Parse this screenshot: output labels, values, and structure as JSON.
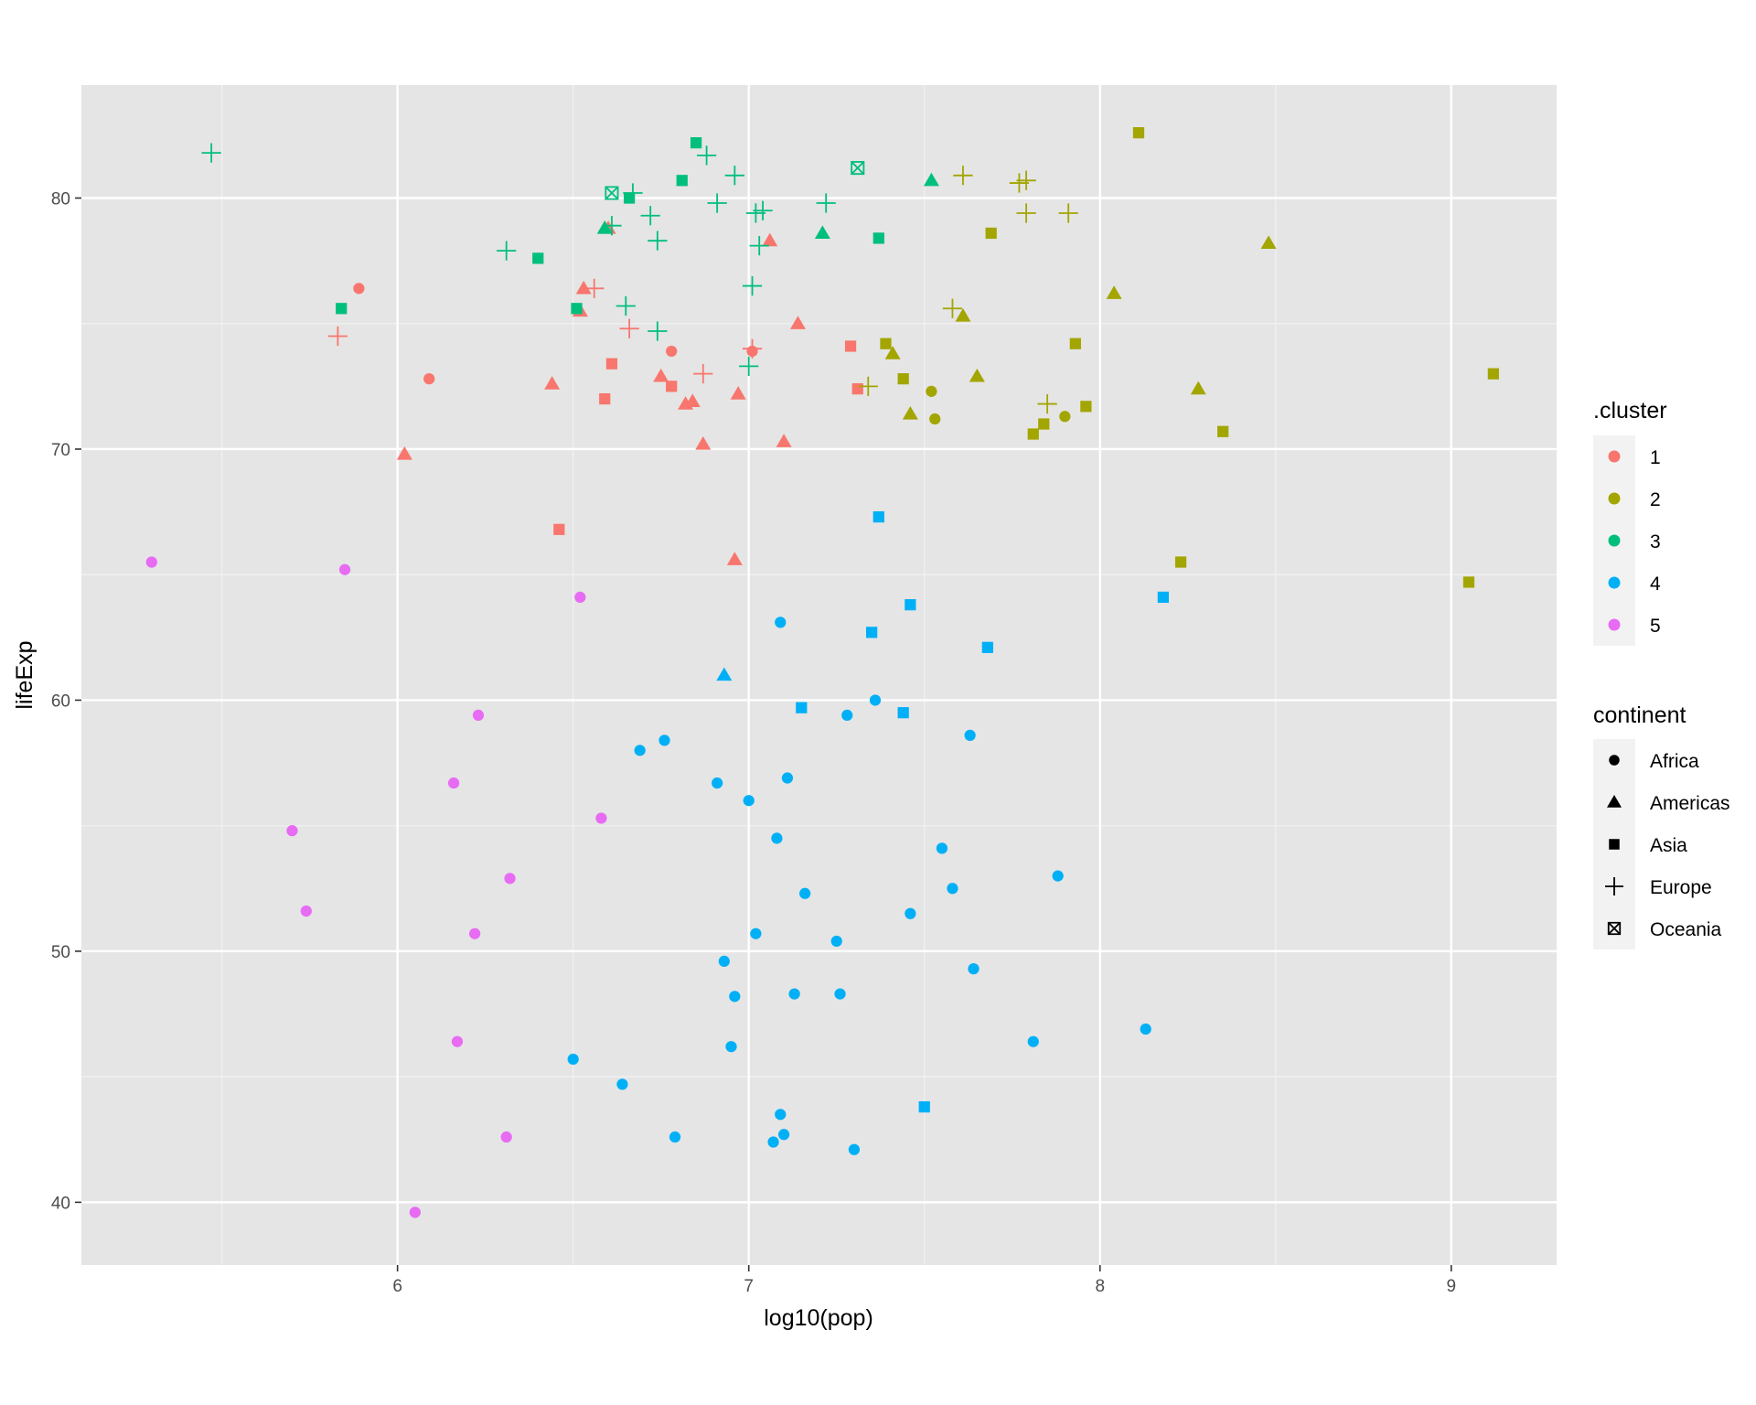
{
  "chart_data": {
    "type": "scatter",
    "xlabel": "log10(pop)",
    "ylabel": "lifeExp",
    "xlim": [
      5.1,
      9.3
    ],
    "ylim": [
      37.5,
      84.5
    ],
    "x_ticks": [
      6,
      7,
      8,
      9
    ],
    "x_minor": [
      5.5,
      6.5,
      7.5,
      8.5
    ],
    "y_ticks": [
      40,
      50,
      60,
      70,
      80
    ],
    "y_minor": [
      45,
      55,
      65,
      75
    ],
    "grid": true,
    "panel_background": "#e5e5e5",
    "legend_placement": "right",
    "legends": [
      {
        "title": ".cluster",
        "type": "color",
        "entries": [
          {
            "label": "1",
            "color": "#F8766D"
          },
          {
            "label": "2",
            "color": "#A3A500"
          },
          {
            "label": "3",
            "color": "#00BF7D"
          },
          {
            "label": "4",
            "color": "#00B0F6"
          },
          {
            "label": "5",
            "color": "#E76BF3"
          }
        ]
      },
      {
        "title": "continent",
        "type": "shape",
        "entries": [
          {
            "label": "Africa",
            "shape": "circle"
          },
          {
            "label": "Americas",
            "shape": "triangle"
          },
          {
            "label": "Asia",
            "shape": "square"
          },
          {
            "label": "Europe",
            "shape": "plus"
          },
          {
            "label": "Oceania",
            "shape": "boxcross"
          }
        ]
      }
    ],
    "points": [
      {
        "x": 5.89,
        "y": 76.4,
        "cluster": 1,
        "continent": "Africa"
      },
      {
        "x": 6.09,
        "y": 72.8,
        "cluster": 1,
        "continent": "Africa"
      },
      {
        "x": 6.78,
        "y": 73.9,
        "cluster": 1,
        "continent": "Africa"
      },
      {
        "x": 7.01,
        "y": 73.9,
        "cluster": 1,
        "continent": "Africa"
      },
      {
        "x": 6.02,
        "y": 69.8,
        "cluster": 1,
        "continent": "Americas"
      },
      {
        "x": 6.44,
        "y": 72.6,
        "cluster": 1,
        "continent": "Americas"
      },
      {
        "x": 6.52,
        "y": 75.5,
        "cluster": 1,
        "continent": "Americas"
      },
      {
        "x": 6.53,
        "y": 76.4,
        "cluster": 1,
        "continent": "Americas"
      },
      {
        "x": 6.6,
        "y": 78.8,
        "cluster": 1,
        "continent": "Americas"
      },
      {
        "x": 6.75,
        "y": 72.9,
        "cluster": 1,
        "continent": "Americas"
      },
      {
        "x": 6.82,
        "y": 71.8,
        "cluster": 1,
        "continent": "Americas"
      },
      {
        "x": 6.84,
        "y": 71.9,
        "cluster": 1,
        "continent": "Americas"
      },
      {
        "x": 6.87,
        "y": 70.2,
        "cluster": 1,
        "continent": "Americas"
      },
      {
        "x": 6.96,
        "y": 65.6,
        "cluster": 1,
        "continent": "Americas"
      },
      {
        "x": 6.97,
        "y": 72.2,
        "cluster": 1,
        "continent": "Americas"
      },
      {
        "x": 7.06,
        "y": 78.3,
        "cluster": 1,
        "continent": "Americas"
      },
      {
        "x": 7.1,
        "y": 70.3,
        "cluster": 1,
        "continent": "Americas"
      },
      {
        "x": 7.14,
        "y": 75.0,
        "cluster": 1,
        "continent": "Americas"
      },
      {
        "x": 6.46,
        "y": 66.8,
        "cluster": 1,
        "continent": "Asia"
      },
      {
        "x": 6.59,
        "y": 72.0,
        "cluster": 1,
        "continent": "Asia"
      },
      {
        "x": 6.61,
        "y": 73.4,
        "cluster": 1,
        "continent": "Asia"
      },
      {
        "x": 6.78,
        "y": 72.5,
        "cluster": 1,
        "continent": "Asia"
      },
      {
        "x": 7.29,
        "y": 74.1,
        "cluster": 1,
        "continent": "Asia"
      },
      {
        "x": 7.31,
        "y": 72.4,
        "cluster": 1,
        "continent": "Asia"
      },
      {
        "x": 5.83,
        "y": 74.5,
        "cluster": 1,
        "continent": "Europe"
      },
      {
        "x": 6.56,
        "y": 76.4,
        "cluster": 1,
        "continent": "Europe"
      },
      {
        "x": 6.66,
        "y": 74.8,
        "cluster": 1,
        "continent": "Europe"
      },
      {
        "x": 6.87,
        "y": 73.0,
        "cluster": 1,
        "continent": "Europe"
      },
      {
        "x": 7.01,
        "y": 74.0,
        "cluster": 1,
        "continent": "Europe"
      },
      {
        "x": 7.52,
        "y": 72.3,
        "cluster": 2,
        "continent": "Africa"
      },
      {
        "x": 7.53,
        "y": 71.2,
        "cluster": 2,
        "continent": "Africa"
      },
      {
        "x": 7.9,
        "y": 71.3,
        "cluster": 2,
        "continent": "Africa"
      },
      {
        "x": 7.41,
        "y": 73.8,
        "cluster": 2,
        "continent": "Americas"
      },
      {
        "x": 7.46,
        "y": 71.4,
        "cluster": 2,
        "continent": "Americas"
      },
      {
        "x": 7.61,
        "y": 75.3,
        "cluster": 2,
        "continent": "Americas"
      },
      {
        "x": 7.65,
        "y": 72.9,
        "cluster": 2,
        "continent": "Americas"
      },
      {
        "x": 8.04,
        "y": 76.2,
        "cluster": 2,
        "continent": "Americas"
      },
      {
        "x": 8.28,
        "y": 72.4,
        "cluster": 2,
        "continent": "Americas"
      },
      {
        "x": 8.48,
        "y": 78.2,
        "cluster": 2,
        "continent": "Americas"
      },
      {
        "x": 7.39,
        "y": 74.2,
        "cluster": 2,
        "continent": "Asia"
      },
      {
        "x": 7.44,
        "y": 72.8,
        "cluster": 2,
        "continent": "Asia"
      },
      {
        "x": 7.69,
        "y": 78.6,
        "cluster": 2,
        "continent": "Asia"
      },
      {
        "x": 7.81,
        "y": 70.6,
        "cluster": 2,
        "continent": "Asia"
      },
      {
        "x": 7.84,
        "y": 71.0,
        "cluster": 2,
        "continent": "Asia"
      },
      {
        "x": 7.93,
        "y": 74.2,
        "cluster": 2,
        "continent": "Asia"
      },
      {
        "x": 7.96,
        "y": 71.7,
        "cluster": 2,
        "continent": "Asia"
      },
      {
        "x": 8.11,
        "y": 82.6,
        "cluster": 2,
        "continent": "Asia"
      },
      {
        "x": 8.23,
        "y": 65.5,
        "cluster": 2,
        "continent": "Asia"
      },
      {
        "x": 8.35,
        "y": 70.7,
        "cluster": 2,
        "continent": "Asia"
      },
      {
        "x": 9.05,
        "y": 64.7,
        "cluster": 2,
        "continent": "Asia"
      },
      {
        "x": 9.12,
        "y": 73.0,
        "cluster": 2,
        "continent": "Asia"
      },
      {
        "x": 7.34,
        "y": 72.5,
        "cluster": 2,
        "continent": "Europe"
      },
      {
        "x": 7.58,
        "y": 75.6,
        "cluster": 2,
        "continent": "Europe"
      },
      {
        "x": 7.61,
        "y": 80.9,
        "cluster": 2,
        "continent": "Europe"
      },
      {
        "x": 7.77,
        "y": 80.6,
        "cluster": 2,
        "continent": "Europe"
      },
      {
        "x": 7.79,
        "y": 80.7,
        "cluster": 2,
        "continent": "Europe"
      },
      {
        "x": 7.79,
        "y": 79.4,
        "cluster": 2,
        "continent": "Europe"
      },
      {
        "x": 7.85,
        "y": 71.8,
        "cluster": 2,
        "continent": "Europe"
      },
      {
        "x": 7.91,
        "y": 79.4,
        "cluster": 2,
        "continent": "Europe"
      },
      {
        "x": 6.59,
        "y": 78.8,
        "cluster": 3,
        "continent": "Americas"
      },
      {
        "x": 7.21,
        "y": 78.6,
        "cluster": 3,
        "continent": "Americas"
      },
      {
        "x": 7.52,
        "y": 80.7,
        "cluster": 3,
        "continent": "Americas"
      },
      {
        "x": 5.84,
        "y": 75.6,
        "cluster": 3,
        "continent": "Asia"
      },
      {
        "x": 6.4,
        "y": 77.6,
        "cluster": 3,
        "continent": "Asia"
      },
      {
        "x": 6.51,
        "y": 75.6,
        "cluster": 3,
        "continent": "Asia"
      },
      {
        "x": 6.66,
        "y": 80.0,
        "cluster": 3,
        "continent": "Asia"
      },
      {
        "x": 6.81,
        "y": 80.7,
        "cluster": 3,
        "continent": "Asia"
      },
      {
        "x": 6.85,
        "y": 82.2,
        "cluster": 3,
        "continent": "Asia"
      },
      {
        "x": 7.37,
        "y": 78.4,
        "cluster": 3,
        "continent": "Asia"
      },
      {
        "x": 5.47,
        "y": 81.8,
        "cluster": 3,
        "continent": "Europe"
      },
      {
        "x": 6.31,
        "y": 77.9,
        "cluster": 3,
        "continent": "Europe"
      },
      {
        "x": 6.61,
        "y": 78.9,
        "cluster": 3,
        "continent": "Europe"
      },
      {
        "x": 6.65,
        "y": 75.7,
        "cluster": 3,
        "continent": "Europe"
      },
      {
        "x": 6.67,
        "y": 80.2,
        "cluster": 3,
        "continent": "Europe"
      },
      {
        "x": 6.72,
        "y": 79.3,
        "cluster": 3,
        "continent": "Europe"
      },
      {
        "x": 6.74,
        "y": 78.3,
        "cluster": 3,
        "continent": "Europe"
      },
      {
        "x": 6.74,
        "y": 74.7,
        "cluster": 3,
        "continent": "Europe"
      },
      {
        "x": 6.88,
        "y": 81.7,
        "cluster": 3,
        "continent": "Europe"
      },
      {
        "x": 6.91,
        "y": 79.8,
        "cluster": 3,
        "continent": "Europe"
      },
      {
        "x": 6.96,
        "y": 80.9,
        "cluster": 3,
        "continent": "Europe"
      },
      {
        "x": 7.0,
        "y": 73.3,
        "cluster": 3,
        "continent": "Europe"
      },
      {
        "x": 7.01,
        "y": 76.5,
        "cluster": 3,
        "continent": "Europe"
      },
      {
        "x": 7.02,
        "y": 79.4,
        "cluster": 3,
        "continent": "Europe"
      },
      {
        "x": 7.03,
        "y": 78.1,
        "cluster": 3,
        "continent": "Europe"
      },
      {
        "x": 7.04,
        "y": 79.5,
        "cluster": 3,
        "continent": "Europe"
      },
      {
        "x": 7.22,
        "y": 79.8,
        "cluster": 3,
        "continent": "Europe"
      },
      {
        "x": 6.61,
        "y": 80.2,
        "cluster": 3,
        "continent": "Oceania"
      },
      {
        "x": 7.31,
        "y": 81.2,
        "cluster": 3,
        "continent": "Oceania"
      },
      {
        "x": 6.5,
        "y": 45.7,
        "cluster": 4,
        "continent": "Africa"
      },
      {
        "x": 6.64,
        "y": 44.7,
        "cluster": 4,
        "continent": "Africa"
      },
      {
        "x": 6.69,
        "y": 58.0,
        "cluster": 4,
        "continent": "Africa"
      },
      {
        "x": 6.76,
        "y": 58.4,
        "cluster": 4,
        "continent": "Africa"
      },
      {
        "x": 6.79,
        "y": 42.6,
        "cluster": 4,
        "continent": "Africa"
      },
      {
        "x": 6.91,
        "y": 56.7,
        "cluster": 4,
        "continent": "Africa"
      },
      {
        "x": 6.93,
        "y": 49.6,
        "cluster": 4,
        "continent": "Africa"
      },
      {
        "x": 6.95,
        "y": 46.2,
        "cluster": 4,
        "continent": "Africa"
      },
      {
        "x": 6.96,
        "y": 48.2,
        "cluster": 4,
        "continent": "Africa"
      },
      {
        "x": 7.0,
        "y": 56.0,
        "cluster": 4,
        "continent": "Africa"
      },
      {
        "x": 7.02,
        "y": 50.7,
        "cluster": 4,
        "continent": "Africa"
      },
      {
        "x": 7.07,
        "y": 42.4,
        "cluster": 4,
        "continent": "Africa"
      },
      {
        "x": 7.08,
        "y": 54.5,
        "cluster": 4,
        "continent": "Africa"
      },
      {
        "x": 7.09,
        "y": 63.1,
        "cluster": 4,
        "continent": "Africa"
      },
      {
        "x": 7.09,
        "y": 43.5,
        "cluster": 4,
        "continent": "Africa"
      },
      {
        "x": 7.1,
        "y": 42.7,
        "cluster": 4,
        "continent": "Africa"
      },
      {
        "x": 7.11,
        "y": 56.9,
        "cluster": 4,
        "continent": "Africa"
      },
      {
        "x": 7.13,
        "y": 48.3,
        "cluster": 4,
        "continent": "Africa"
      },
      {
        "x": 7.16,
        "y": 52.3,
        "cluster": 4,
        "continent": "Africa"
      },
      {
        "x": 7.25,
        "y": 50.4,
        "cluster": 4,
        "continent": "Africa"
      },
      {
        "x": 7.26,
        "y": 48.3,
        "cluster": 4,
        "continent": "Africa"
      },
      {
        "x": 7.28,
        "y": 59.4,
        "cluster": 4,
        "continent": "Africa"
      },
      {
        "x": 7.3,
        "y": 42.1,
        "cluster": 4,
        "continent": "Africa"
      },
      {
        "x": 7.36,
        "y": 60.0,
        "cluster": 4,
        "continent": "Africa"
      },
      {
        "x": 7.46,
        "y": 51.5,
        "cluster": 4,
        "continent": "Africa"
      },
      {
        "x": 7.55,
        "y": 54.1,
        "cluster": 4,
        "continent": "Africa"
      },
      {
        "x": 7.58,
        "y": 52.5,
        "cluster": 4,
        "continent": "Africa"
      },
      {
        "x": 7.63,
        "y": 58.6,
        "cluster": 4,
        "continent": "Africa"
      },
      {
        "x": 7.64,
        "y": 49.3,
        "cluster": 4,
        "continent": "Africa"
      },
      {
        "x": 7.81,
        "y": 46.4,
        "cluster": 4,
        "continent": "Africa"
      },
      {
        "x": 7.88,
        "y": 53.0,
        "cluster": 4,
        "continent": "Africa"
      },
      {
        "x": 8.13,
        "y": 46.9,
        "cluster": 4,
        "continent": "Africa"
      },
      {
        "x": 6.93,
        "y": 61.0,
        "cluster": 4,
        "continent": "Americas"
      },
      {
        "x": 7.15,
        "y": 59.7,
        "cluster": 4,
        "continent": "Asia"
      },
      {
        "x": 7.35,
        "y": 62.7,
        "cluster": 4,
        "continent": "Asia"
      },
      {
        "x": 7.37,
        "y": 67.3,
        "cluster": 4,
        "continent": "Asia"
      },
      {
        "x": 7.44,
        "y": 59.5,
        "cluster": 4,
        "continent": "Asia"
      },
      {
        "x": 7.46,
        "y": 63.8,
        "cluster": 4,
        "continent": "Asia"
      },
      {
        "x": 7.5,
        "y": 43.8,
        "cluster": 4,
        "continent": "Asia"
      },
      {
        "x": 7.68,
        "y": 62.1,
        "cluster": 4,
        "continent": "Asia"
      },
      {
        "x": 8.18,
        "y": 64.1,
        "cluster": 4,
        "continent": "Asia"
      },
      {
        "x": 5.3,
        "y": 65.5,
        "cluster": 5,
        "continent": "Africa"
      },
      {
        "x": 5.7,
        "y": 54.8,
        "cluster": 5,
        "continent": "Africa"
      },
      {
        "x": 5.74,
        "y": 51.6,
        "cluster": 5,
        "continent": "Africa"
      },
      {
        "x": 5.85,
        "y": 65.2,
        "cluster": 5,
        "continent": "Africa"
      },
      {
        "x": 6.05,
        "y": 39.6,
        "cluster": 5,
        "continent": "Africa"
      },
      {
        "x": 6.16,
        "y": 56.7,
        "cluster": 5,
        "continent": "Africa"
      },
      {
        "x": 6.17,
        "y": 46.4,
        "cluster": 5,
        "continent": "Africa"
      },
      {
        "x": 6.22,
        "y": 50.7,
        "cluster": 5,
        "continent": "Africa"
      },
      {
        "x": 6.23,
        "y": 59.4,
        "cluster": 5,
        "continent": "Africa"
      },
      {
        "x": 6.31,
        "y": 42.6,
        "cluster": 5,
        "continent": "Africa"
      },
      {
        "x": 6.32,
        "y": 52.9,
        "cluster": 5,
        "continent": "Africa"
      },
      {
        "x": 6.52,
        "y": 64.1,
        "cluster": 5,
        "continent": "Africa"
      },
      {
        "x": 6.58,
        "y": 55.3,
        "cluster": 5,
        "continent": "Africa"
      }
    ]
  }
}
